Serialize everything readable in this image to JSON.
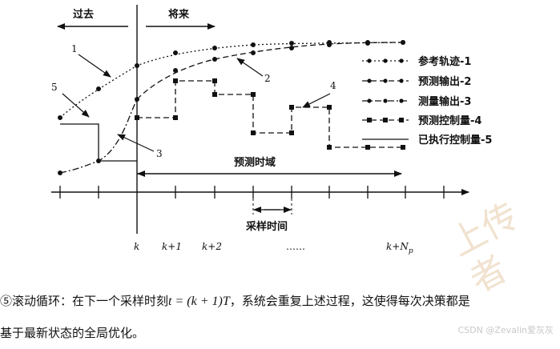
{
  "diagram": {
    "past_label": "过去",
    "future_label": "将来",
    "callouts": [
      "1",
      "2",
      "3",
      "4",
      "5"
    ],
    "prediction_horizon_label": "预测时域",
    "sampling_time_label": "采样时间",
    "legend": [
      {
        "label": "参考轨迹-1",
        "style": "dotted-dots"
      },
      {
        "label": "预测输出-2",
        "style": "dashed-dots"
      },
      {
        "label": "测量输出-3",
        "style": "dashdot-dots"
      },
      {
        "label": "预测控制量-4",
        "style": "dashed-squares"
      },
      {
        "label": "已执行控制量-5",
        "style": "solid"
      }
    ],
    "tick_labels": {
      "k": "k",
      "k1": "k+1",
      "k2": "k+2",
      "ellipsis": "……",
      "knp_base": "k+N",
      "knp_sub": "p"
    }
  },
  "caption": {
    "line1_prefix": "⑤滚动循环：在下一个采样时刻",
    "formula": "t = (k + 1)T",
    "line1_suffix": "，系统会重复上述过程，这使得每次决策都是",
    "line2": "基于最新状态的全局优化。"
  },
  "watermark": {
    "text": "CSDN @Zevalin爱灰灰",
    "faint_chars": "上传者"
  }
}
